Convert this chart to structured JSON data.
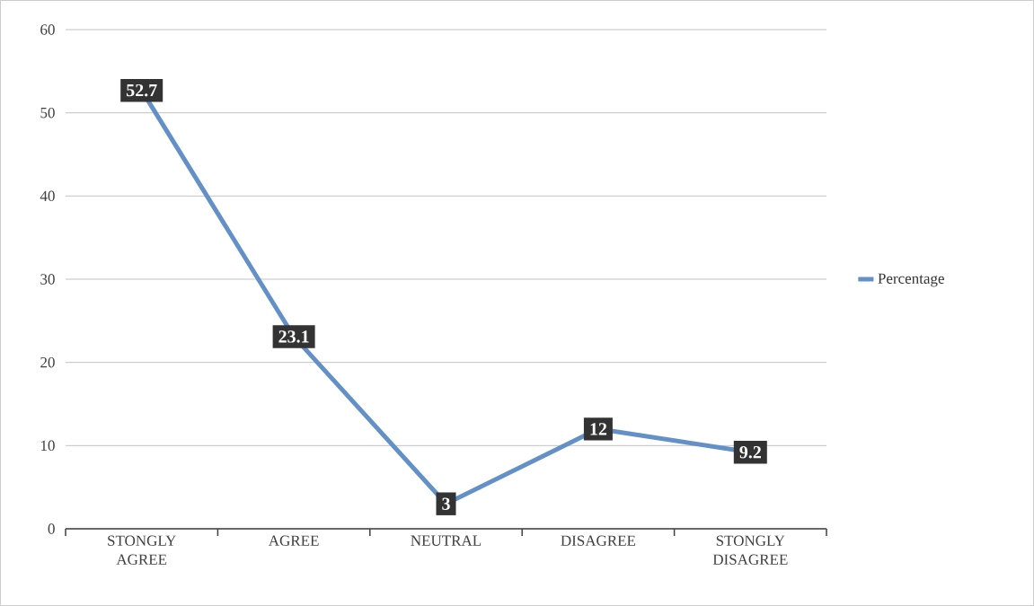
{
  "chart_data": {
    "type": "line",
    "categories": [
      "STONGLY AGREE",
      "AGREE",
      "NEUTRAL",
      "DISAGREE",
      "STONGLY DISAGREE"
    ],
    "series": [
      {
        "name": "Percentage",
        "color": "#6490c8",
        "values": [
          52.7,
          23.1,
          3,
          12,
          9.2
        ]
      }
    ],
    "ylim": [
      0,
      60
    ],
    "yticks": [
      0,
      10,
      20,
      30,
      40,
      50,
      60
    ],
    "grid": "y",
    "legend": "right",
    "data_labels": true,
    "line_style": "solid"
  }
}
